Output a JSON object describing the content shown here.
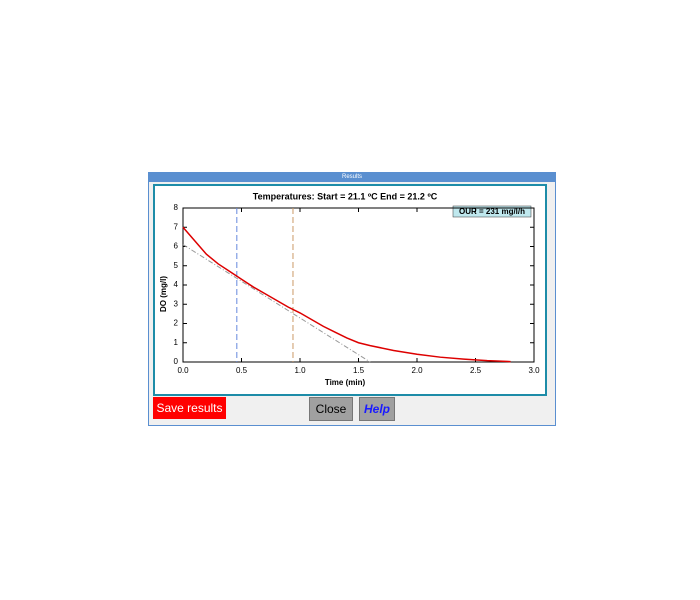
{
  "window": {
    "title": "Results"
  },
  "buttons": [
    "Save results",
    "Close",
    "Help"
  ],
  "chart_data": {
    "type": "line",
    "title": "Temperatures:   Start =  21.1 ºC     End = 21.2 ºC",
    "annotation": "OUR = 231 mg/l/h",
    "x_label": "Time (min)",
    "y_label": "DO (mg/l)",
    "xlim": [
      0,
      3
    ],
    "ylim": [
      0,
      8
    ],
    "xticks": [
      {
        "value": 0,
        "label": "0.0"
      },
      {
        "value": 0.5,
        "label": "0.5"
      },
      {
        "value": 1,
        "label": "1.0"
      },
      {
        "value": 1.5,
        "label": "1.5"
      },
      {
        "value": 2,
        "label": "2.0"
      },
      {
        "value": 2.5,
        "label": "2.5"
      },
      {
        "value": 3,
        "label": "3.0"
      }
    ],
    "yticks": [
      0,
      1,
      2,
      3,
      4,
      5,
      6,
      7,
      8
    ],
    "series": [
      {
        "color": "#dd0000",
        "dash": false,
        "x": [
          0,
          0.1,
          0.2,
          0.3,
          0.4,
          0.5,
          0.6,
          0.7,
          0.8,
          0.9,
          1.0,
          1.1,
          1.2,
          1.3,
          1.4,
          1.5,
          1.6,
          1.8,
          2.0,
          2.2,
          2.4,
          2.6,
          2.8
        ],
        "values": [
          7.0,
          6.3,
          5.6,
          5.1,
          4.7,
          4.3,
          3.9,
          3.55,
          3.2,
          2.85,
          2.55,
          2.2,
          1.85,
          1.55,
          1.25,
          1.0,
          0.85,
          0.6,
          0.4,
          0.25,
          0.15,
          0.07,
          0.02
        ]
      },
      {
        "color": "#999999",
        "dash": true,
        "x": [
          0,
          1.6
        ],
        "values": [
          6.1,
          0
        ]
      }
    ],
    "markers": [
      {
        "x": 0.46,
        "color": "#6688dd"
      },
      {
        "x": 0.94,
        "color": "#cc9966"
      }
    ]
  }
}
